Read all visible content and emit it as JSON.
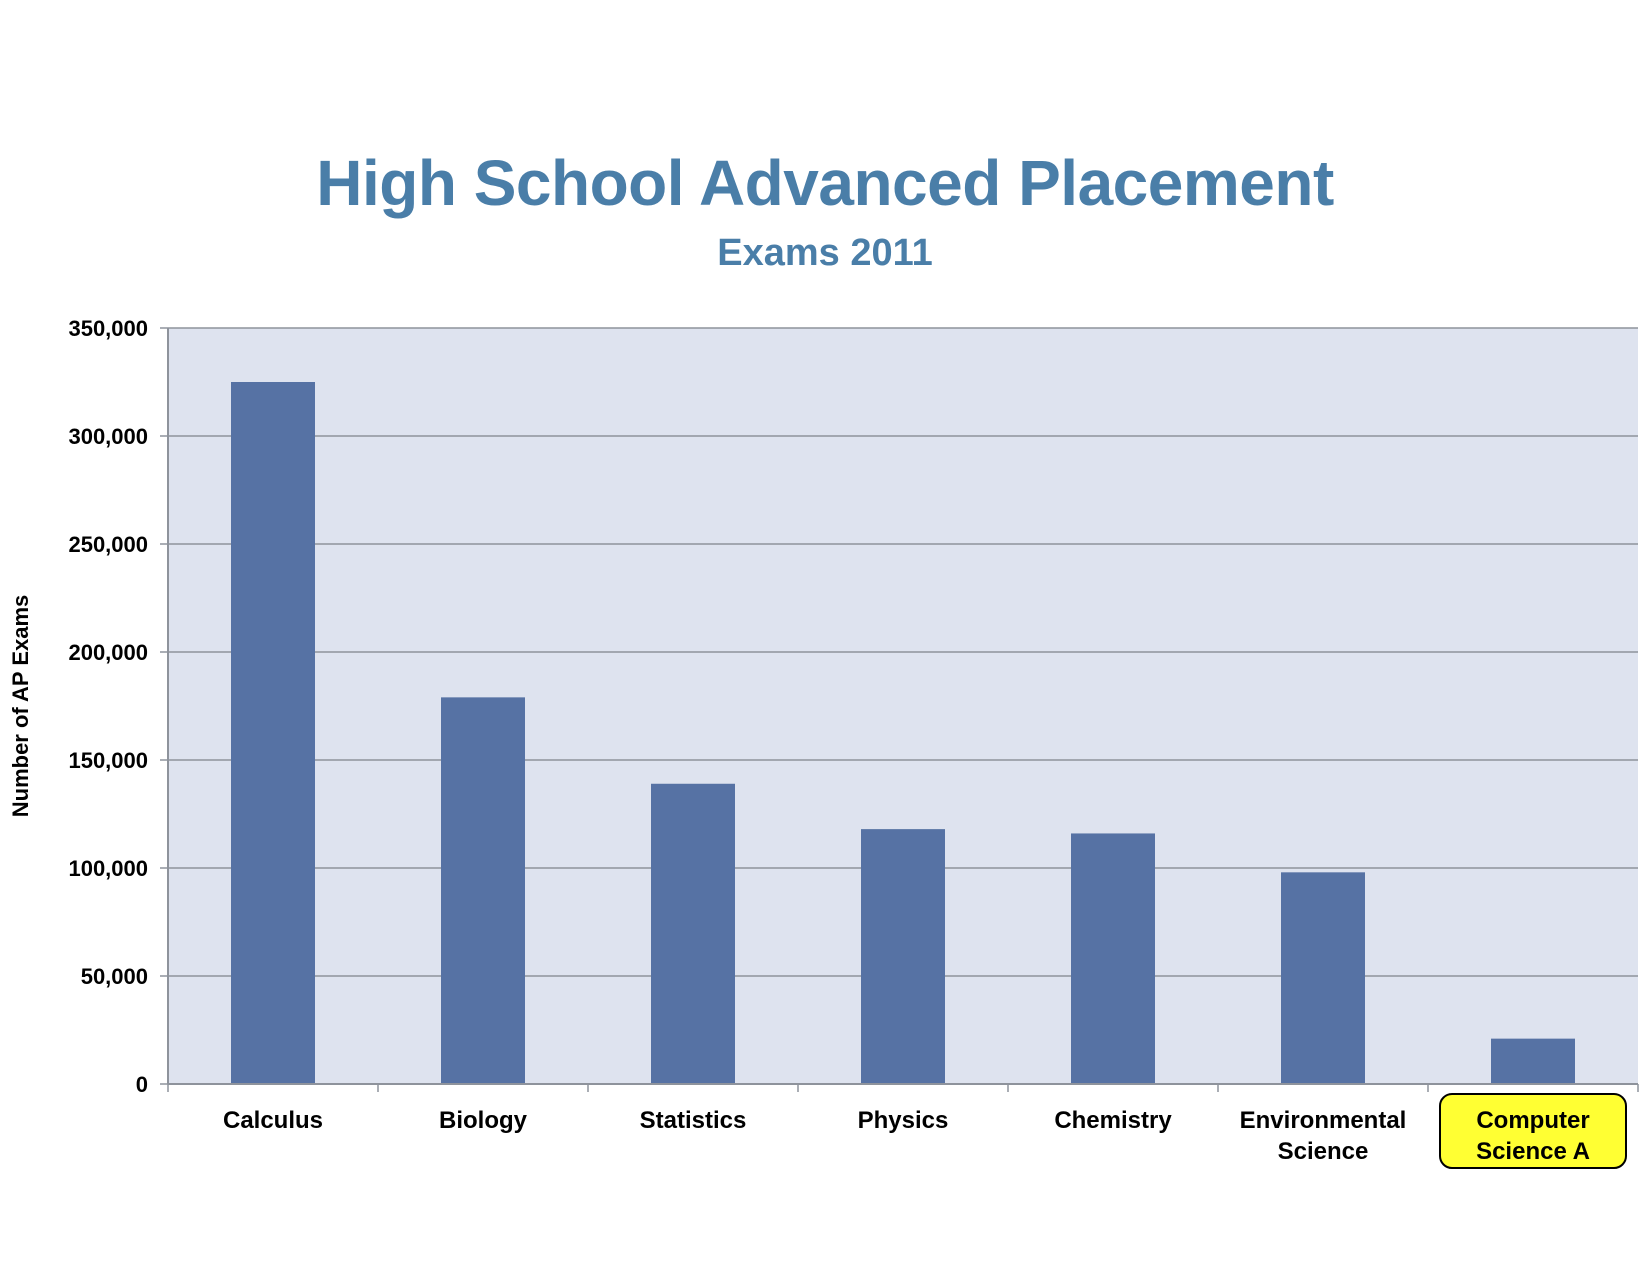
{
  "chart_data": {
    "type": "bar",
    "title": "High School Advanced Placement",
    "subtitle": "Exams 2011",
    "ylabel": "Number of AP Exams",
    "xlabel": "",
    "categories": [
      "Calculus",
      "Biology",
      "Statistics",
      "Physics",
      "Chemistry",
      "Environmental Science",
      "Computer Science A"
    ],
    "category_lines": [
      [
        "Calculus"
      ],
      [
        "Biology"
      ],
      [
        "Statistics"
      ],
      [
        "Physics"
      ],
      [
        "Chemistry"
      ],
      [
        "Environmental",
        "Science"
      ],
      [
        "Computer",
        "Science A"
      ]
    ],
    "values": [
      325000,
      179000,
      139000,
      118000,
      116000,
      98000,
      21000
    ],
    "ylim": [
      0,
      350000
    ],
    "yticks": [
      0,
      50000,
      100000,
      150000,
      200000,
      250000,
      300000,
      350000
    ],
    "ytick_labels": [
      "0",
      "50,000",
      "100,000",
      "150,000",
      "200,000",
      "250,000",
      "300,000",
      "350,000"
    ],
    "grid": true,
    "highlighted_category": "Computer Science A",
    "colors": {
      "bar": "#5672a4",
      "plot_background": "#dee3ef",
      "gridline": "#8e939c",
      "title": "#4a7ea8",
      "highlight_fill": "#ffff33",
      "highlight_border": "#000000"
    }
  }
}
